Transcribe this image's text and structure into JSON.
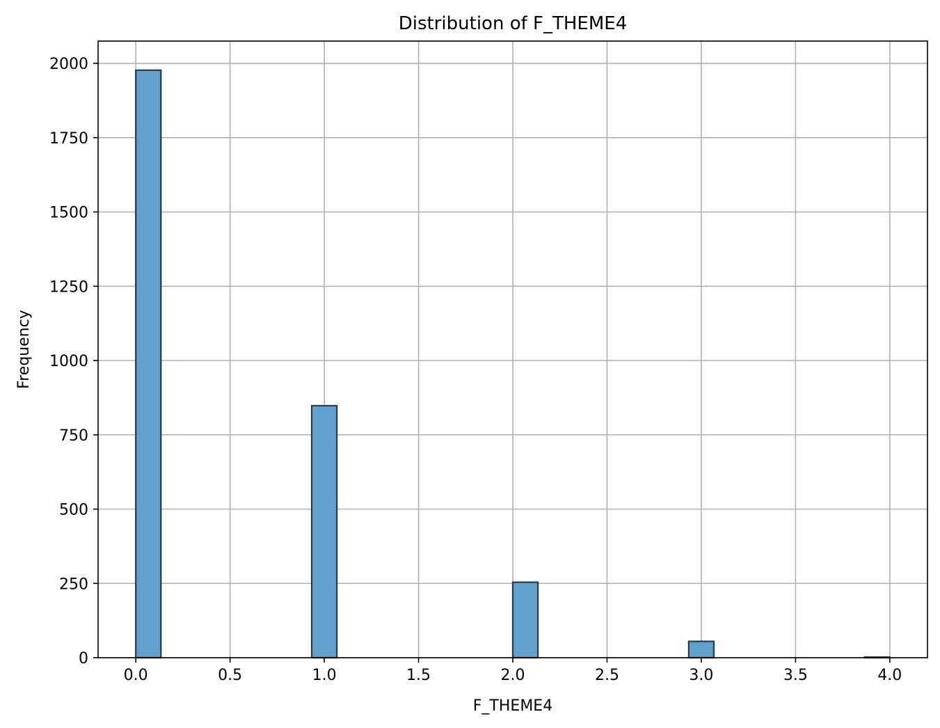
{
  "chart_data": {
    "type": "bar",
    "title": "Distribution of F_THEME4",
    "xlabel": "F_THEME4",
    "ylabel": "Frequency",
    "xlim": [
      -0.2,
      4.2
    ],
    "ylim": [
      0,
      2075
    ],
    "xticks": [
      0.0,
      0.5,
      1.0,
      1.5,
      2.0,
      2.5,
      3.0,
      3.5,
      4.0
    ],
    "xtick_labels": [
      "0.0",
      "0.5",
      "1.0",
      "1.5",
      "2.0",
      "2.5",
      "3.0",
      "3.5",
      "4.0"
    ],
    "yticks": [
      0,
      250,
      500,
      750,
      1000,
      1250,
      1500,
      1750,
      2000
    ],
    "ytick_labels": [
      "0",
      "250",
      "500",
      "750",
      "1000",
      "1250",
      "1500",
      "1750",
      "2000"
    ],
    "grid": true,
    "bin_width": 0.1333,
    "bins": [
      {
        "x_start": 0.0,
        "value": 1977
      },
      {
        "x_start": 0.9333,
        "value": 848
      },
      {
        "x_start": 2.0,
        "value": 254
      },
      {
        "x_start": 2.9333,
        "value": 55
      },
      {
        "x_start": 3.8667,
        "value": 2
      }
    ],
    "colors": {
      "bar_fill": "#62a0cd",
      "bar_edge": "#2b3a4a",
      "grid": "#b0b0b0",
      "axis": "#000000"
    }
  }
}
